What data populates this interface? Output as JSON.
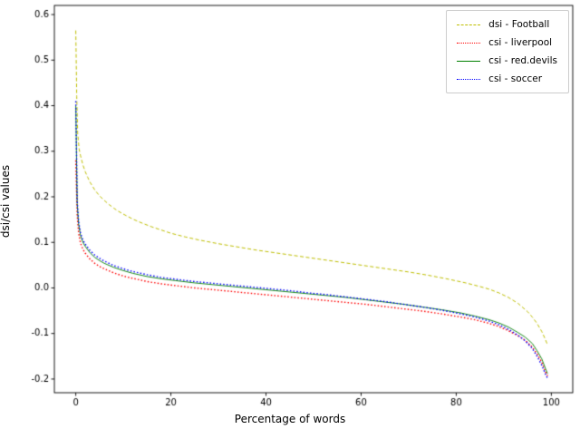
{
  "chart_data": {
    "type": "line",
    "title": "",
    "xlabel": "Percentage of words",
    "ylabel": "dsi/csi values",
    "xlim": [
      -4.5,
      104.5
    ],
    "ylim": [
      -0.23,
      0.62
    ],
    "xticks": [
      0,
      20,
      40,
      60,
      80,
      100
    ],
    "yticks": [
      -0.2,
      -0.1,
      0.0,
      0.1,
      0.2,
      0.3,
      0.4,
      0.5,
      0.6
    ],
    "grid": false,
    "legend_position": "upper right",
    "series": [
      {
        "name": "dsi - Football",
        "color": "#bfbf00",
        "style": "dashed",
        "points": [
          [
            0,
            0.565
          ],
          [
            0.2,
            0.42
          ],
          [
            0.4,
            0.34
          ],
          [
            0.7,
            0.305
          ],
          [
            1,
            0.29
          ],
          [
            1.5,
            0.27
          ],
          [
            2,
            0.255
          ],
          [
            2.5,
            0.243
          ],
          [
            3,
            0.232
          ],
          [
            4,
            0.215
          ],
          [
            5,
            0.202
          ],
          [
            6,
            0.192
          ],
          [
            7,
            0.183
          ],
          [
            8,
            0.175
          ],
          [
            9,
            0.168
          ],
          [
            10,
            0.162
          ],
          [
            12,
            0.151
          ],
          [
            14,
            0.142
          ],
          [
            16,
            0.134
          ],
          [
            18,
            0.127
          ],
          [
            20,
            0.12
          ],
          [
            23,
            0.112
          ],
          [
            26,
            0.105
          ],
          [
            30,
            0.097
          ],
          [
            34,
            0.09
          ],
          [
            38,
            0.083
          ],
          [
            42,
            0.077
          ],
          [
            46,
            0.071
          ],
          [
            50,
            0.065
          ],
          [
            54,
            0.059
          ],
          [
            58,
            0.053
          ],
          [
            62,
            0.047
          ],
          [
            66,
            0.041
          ],
          [
            70,
            0.035
          ],
          [
            74,
            0.028
          ],
          [
            78,
            0.02
          ],
          [
            82,
            0.011
          ],
          [
            85,
            0.003
          ],
          [
            87,
            -0.003
          ],
          [
            89,
            -0.011
          ],
          [
            91,
            -0.021
          ],
          [
            93,
            -0.034
          ],
          [
            95,
            -0.052
          ],
          [
            96,
            -0.064
          ],
          [
            97,
            -0.078
          ],
          [
            98,
            -0.096
          ],
          [
            98.7,
            -0.112
          ],
          [
            99.2,
            -0.125
          ]
        ]
      },
      {
        "name": "csi - liverpool",
        "color": "#ff0000",
        "style": "dotted",
        "points": [
          [
            0,
            0.28
          ],
          [
            0.3,
            0.16
          ],
          [
            0.6,
            0.12
          ],
          [
            1,
            0.098
          ],
          [
            1.5,
            0.085
          ],
          [
            2,
            0.076
          ],
          [
            3,
            0.063
          ],
          [
            4,
            0.054
          ],
          [
            5,
            0.047
          ],
          [
            6,
            0.042
          ],
          [
            8,
            0.033
          ],
          [
            10,
            0.026
          ],
          [
            12,
            0.021
          ],
          [
            15,
            0.014
          ],
          [
            18,
            0.009
          ],
          [
            21,
            0.005
          ],
          [
            25,
            0.0
          ],
          [
            29,
            -0.004
          ],
          [
            33,
            -0.008
          ],
          [
            37,
            -0.012
          ],
          [
            41,
            -0.016
          ],
          [
            45,
            -0.02
          ],
          [
            49,
            -0.024
          ],
          [
            53,
            -0.028
          ],
          [
            57,
            -0.032
          ],
          [
            61,
            -0.036
          ],
          [
            65,
            -0.041
          ],
          [
            69,
            -0.046
          ],
          [
            73,
            -0.051
          ],
          [
            77,
            -0.057
          ],
          [
            81,
            -0.064
          ],
          [
            84,
            -0.07
          ],
          [
            87,
            -0.078
          ],
          [
            89,
            -0.085
          ],
          [
            91,
            -0.094
          ],
          [
            93,
            -0.105
          ],
          [
            94.5,
            -0.115
          ],
          [
            96,
            -0.13
          ],
          [
            97,
            -0.145
          ],
          [
            98,
            -0.163
          ],
          [
            98.8,
            -0.185
          ],
          [
            99.2,
            -0.193
          ]
        ]
      },
      {
        "name": "csi - red.devils",
        "color": "#008000",
        "style": "solid",
        "points": [
          [
            0,
            0.4
          ],
          [
            0.3,
            0.185
          ],
          [
            0.6,
            0.14
          ],
          [
            1,
            0.115
          ],
          [
            1.5,
            0.1
          ],
          [
            2,
            0.091
          ],
          [
            3,
            0.077
          ],
          [
            4,
            0.067
          ],
          [
            5,
            0.06
          ],
          [
            6,
            0.054
          ],
          [
            8,
            0.045
          ],
          [
            10,
            0.038
          ],
          [
            12,
            0.032
          ],
          [
            15,
            0.025
          ],
          [
            18,
            0.02
          ],
          [
            21,
            0.016
          ],
          [
            25,
            0.011
          ],
          [
            29,
            0.007
          ],
          [
            33,
            0.003
          ],
          [
            37,
            -0.001
          ],
          [
            41,
            -0.005
          ],
          [
            45,
            -0.009
          ],
          [
            49,
            -0.013
          ],
          [
            53,
            -0.017
          ],
          [
            57,
            -0.021
          ],
          [
            61,
            -0.026
          ],
          [
            65,
            -0.031
          ],
          [
            69,
            -0.036
          ],
          [
            73,
            -0.042
          ],
          [
            77,
            -0.048
          ],
          [
            81,
            -0.055
          ],
          [
            84,
            -0.062
          ],
          [
            87,
            -0.07
          ],
          [
            89,
            -0.077
          ],
          [
            91,
            -0.086
          ],
          [
            93,
            -0.098
          ],
          [
            94.5,
            -0.108
          ],
          [
            96,
            -0.122
          ],
          [
            97,
            -0.138
          ],
          [
            98,
            -0.156
          ],
          [
            98.8,
            -0.178
          ],
          [
            99.2,
            -0.188
          ]
        ]
      },
      {
        "name": "csi - soccer",
        "color": "#0000ff",
        "style": "dotted",
        "points": [
          [
            0,
            0.41
          ],
          [
            0.3,
            0.19
          ],
          [
            0.6,
            0.145
          ],
          [
            1,
            0.12
          ],
          [
            1.5,
            0.105
          ],
          [
            2,
            0.096
          ],
          [
            3,
            0.082
          ],
          [
            4,
            0.072
          ],
          [
            5,
            0.065
          ],
          [
            6,
            0.059
          ],
          [
            8,
            0.049
          ],
          [
            10,
            0.042
          ],
          [
            12,
            0.036
          ],
          [
            15,
            0.029
          ],
          [
            18,
            0.023
          ],
          [
            21,
            0.019
          ],
          [
            25,
            0.014
          ],
          [
            29,
            0.01
          ],
          [
            33,
            0.006
          ],
          [
            37,
            0.002
          ],
          [
            41,
            -0.002
          ],
          [
            45,
            -0.006
          ],
          [
            49,
            -0.011
          ],
          [
            53,
            -0.015
          ],
          [
            57,
            -0.02
          ],
          [
            61,
            -0.025
          ],
          [
            65,
            -0.03
          ],
          [
            69,
            -0.036
          ],
          [
            73,
            -0.042
          ],
          [
            77,
            -0.049
          ],
          [
            81,
            -0.057
          ],
          [
            84,
            -0.064
          ],
          [
            87,
            -0.073
          ],
          [
            89,
            -0.081
          ],
          [
            91,
            -0.091
          ],
          [
            93,
            -0.104
          ],
          [
            94.5,
            -0.116
          ],
          [
            96,
            -0.133
          ],
          [
            97,
            -0.15
          ],
          [
            98,
            -0.17
          ],
          [
            98.8,
            -0.19
          ],
          [
            99.2,
            -0.198
          ]
        ]
      }
    ]
  }
}
